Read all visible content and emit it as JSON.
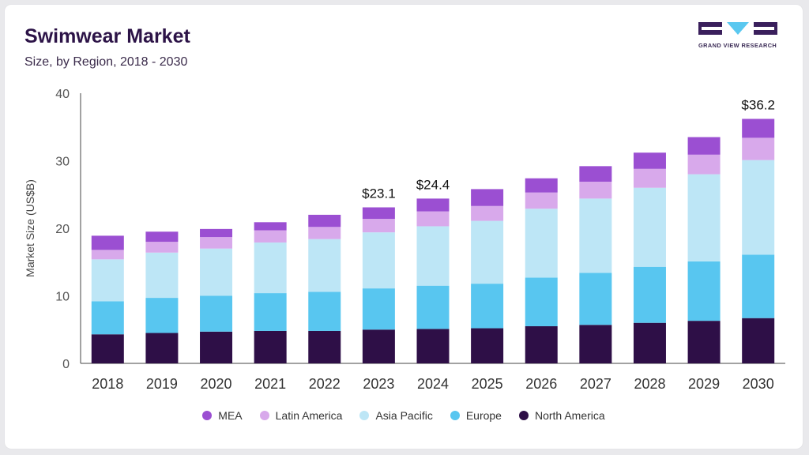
{
  "header": {
    "title": "Swimwear Market",
    "subtitle": "Size, by Region, 2018 - 2030",
    "logo_text": "GRAND VIEW RESEARCH"
  },
  "colors": {
    "North America": "#2e0f47",
    "Europe": "#58c6f0",
    "Asia Pacific": "#bde6f6",
    "Latin America": "#d8a9eb",
    "MEA": "#9b4fd2",
    "axis": "#444444",
    "text": "#333333",
    "logo": "#3a1f5c",
    "logo_accent": "#5ac8f0"
  },
  "chart_data": {
    "type": "bar",
    "stacked": true,
    "categories": [
      "2018",
      "2019",
      "2020",
      "2021",
      "2022",
      "2023",
      "2024",
      "2025",
      "2026",
      "2027",
      "2028",
      "2029",
      "2030"
    ],
    "series": [
      {
        "name": "North America",
        "values": [
          4.3,
          4.5,
          4.7,
          4.8,
          4.8,
          5.0,
          5.1,
          5.2,
          5.5,
          5.7,
          6.0,
          6.3,
          6.7
        ]
      },
      {
        "name": "Europe",
        "values": [
          4.9,
          5.2,
          5.3,
          5.6,
          5.8,
          6.1,
          6.4,
          6.6,
          7.2,
          7.7,
          8.3,
          8.8,
          9.4
        ]
      },
      {
        "name": "Asia Pacific",
        "values": [
          6.2,
          6.7,
          7.0,
          7.5,
          7.8,
          8.3,
          8.8,
          9.3,
          10.2,
          11.0,
          11.7,
          12.9,
          14.0
        ]
      },
      {
        "name": "Latin America",
        "values": [
          1.4,
          1.6,
          1.7,
          1.8,
          1.8,
          2.0,
          2.2,
          2.2,
          2.4,
          2.5,
          2.8,
          2.9,
          3.3
        ]
      },
      {
        "name": "MEA",
        "values": [
          2.1,
          1.5,
          1.2,
          1.2,
          1.8,
          1.7,
          1.9,
          2.5,
          2.1,
          2.3,
          2.4,
          2.6,
          2.8
        ]
      }
    ],
    "annotations": [
      {
        "category": "2023",
        "text": "$23.1",
        "value": 23.1
      },
      {
        "category": "2024",
        "text": "$24.4",
        "value": 24.4
      },
      {
        "category": "2030",
        "text": "$36.2",
        "value": 36.2
      }
    ],
    "ylabel": "Market Size (US$B)",
    "xlabel": "",
    "ylim": [
      0,
      40
    ],
    "yticks": [
      0,
      10,
      20,
      30,
      40
    ],
    "grid": false,
    "legend_position": "bottom",
    "legend_order": [
      "MEA",
      "Latin America",
      "Asia Pacific",
      "Europe",
      "North America"
    ]
  }
}
